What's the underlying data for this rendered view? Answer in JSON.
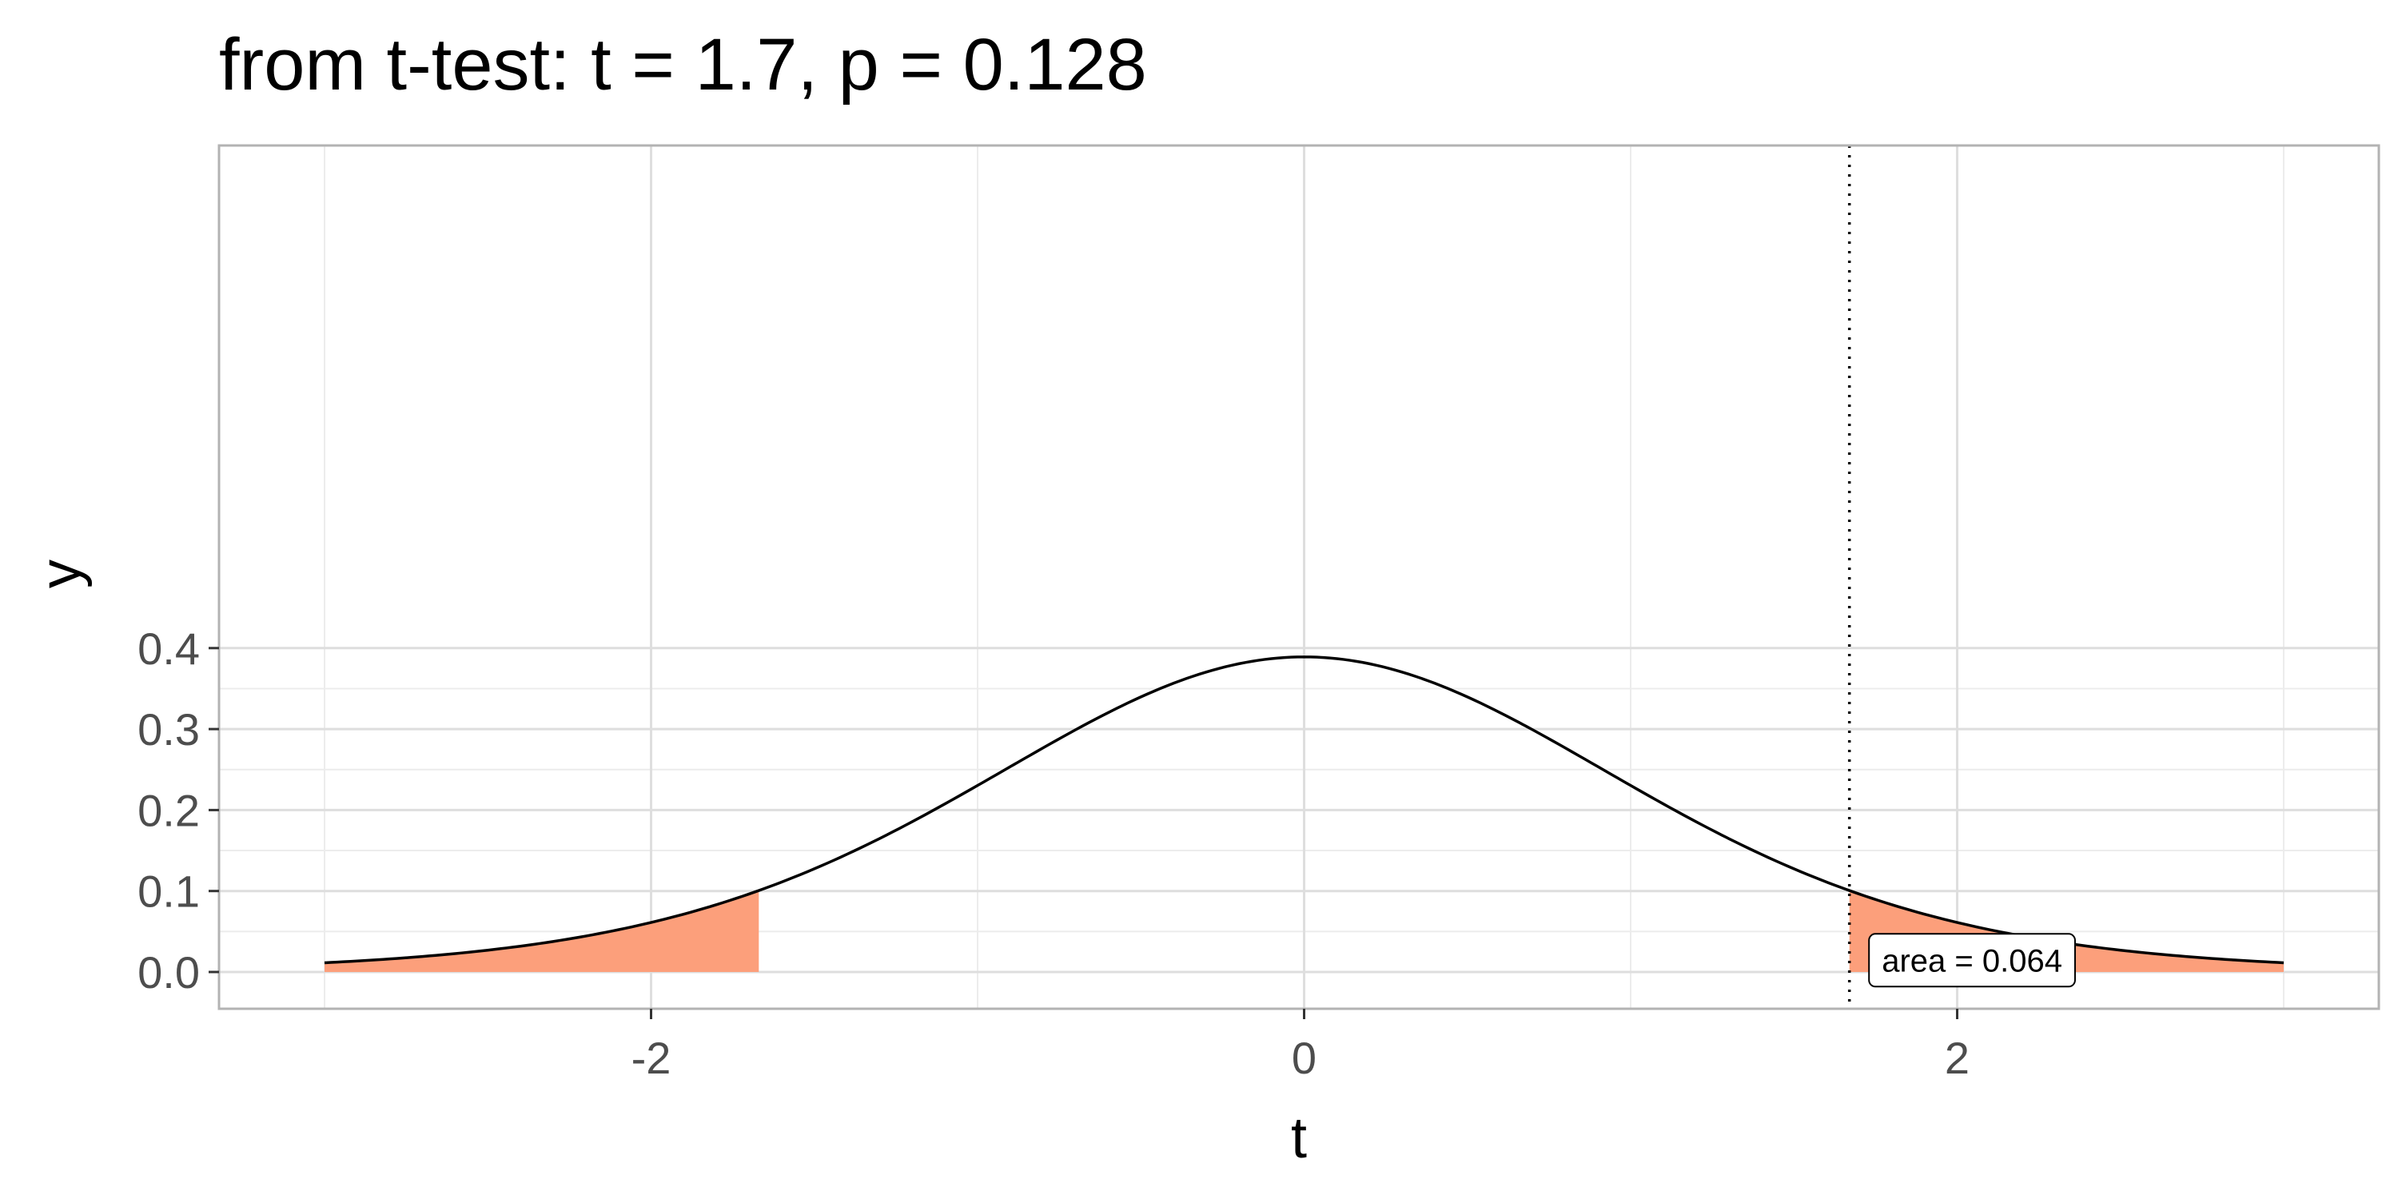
{
  "chart_data": {
    "type": "area",
    "title": "from t-test: t = 1.7, p = 0.128",
    "xlabel": "t",
    "ylabel": "y",
    "xlim": [
      -3,
      3
    ],
    "ylim": [
      0,
      0.4
    ],
    "x_ticks": [
      -2,
      0,
      2
    ],
    "x_tick_labels": [
      "-2",
      "0",
      "2"
    ],
    "y_ticks": [
      0,
      0.1,
      0.2,
      0.3,
      0.4
    ],
    "y_tick_labels": [
      "0.0",
      "0.1",
      "0.2",
      "0.3",
      "0.4"
    ],
    "grid": true,
    "legend": "none",
    "series": [
      {
        "type": "line",
        "x": [
          -3.0,
          -2.5,
          -2.0,
          -1.67,
          -1.5,
          -1.0,
          -0.5,
          0.0,
          0.5,
          1.0,
          1.5,
          1.67,
          2.0,
          2.5,
          3.0
        ],
        "values": [
          0.0116,
          0.0286,
          0.0591,
          0.1,
          0.1218,
          0.2254,
          0.3348,
          0.388,
          0.3348,
          0.2254,
          0.1218,
          0.1,
          0.0591,
          0.0286,
          0.0116
        ],
        "color": "#000000"
      }
    ],
    "shaded_regions": [
      {
        "x_from": -3.0,
        "x_to": -1.67,
        "color": "#FC9F7B"
      },
      {
        "x_from": 1.67,
        "x_to": 3.0,
        "color": "#FC9F7B"
      }
    ],
    "reference_line": {
      "x": 1.67,
      "style": "dotted",
      "color": "#000000"
    },
    "annotations": [
      {
        "text": "area =  0.064",
        "x": 1.73,
        "y": 0.0145
      }
    ],
    "colors": {
      "fill": "#FC9F7B",
      "curve": "#000000",
      "grid_major": "#dedede",
      "grid_minor": "#ececec",
      "border": "#b3b3b3",
      "tick_text": "#4d4d4d"
    }
  }
}
